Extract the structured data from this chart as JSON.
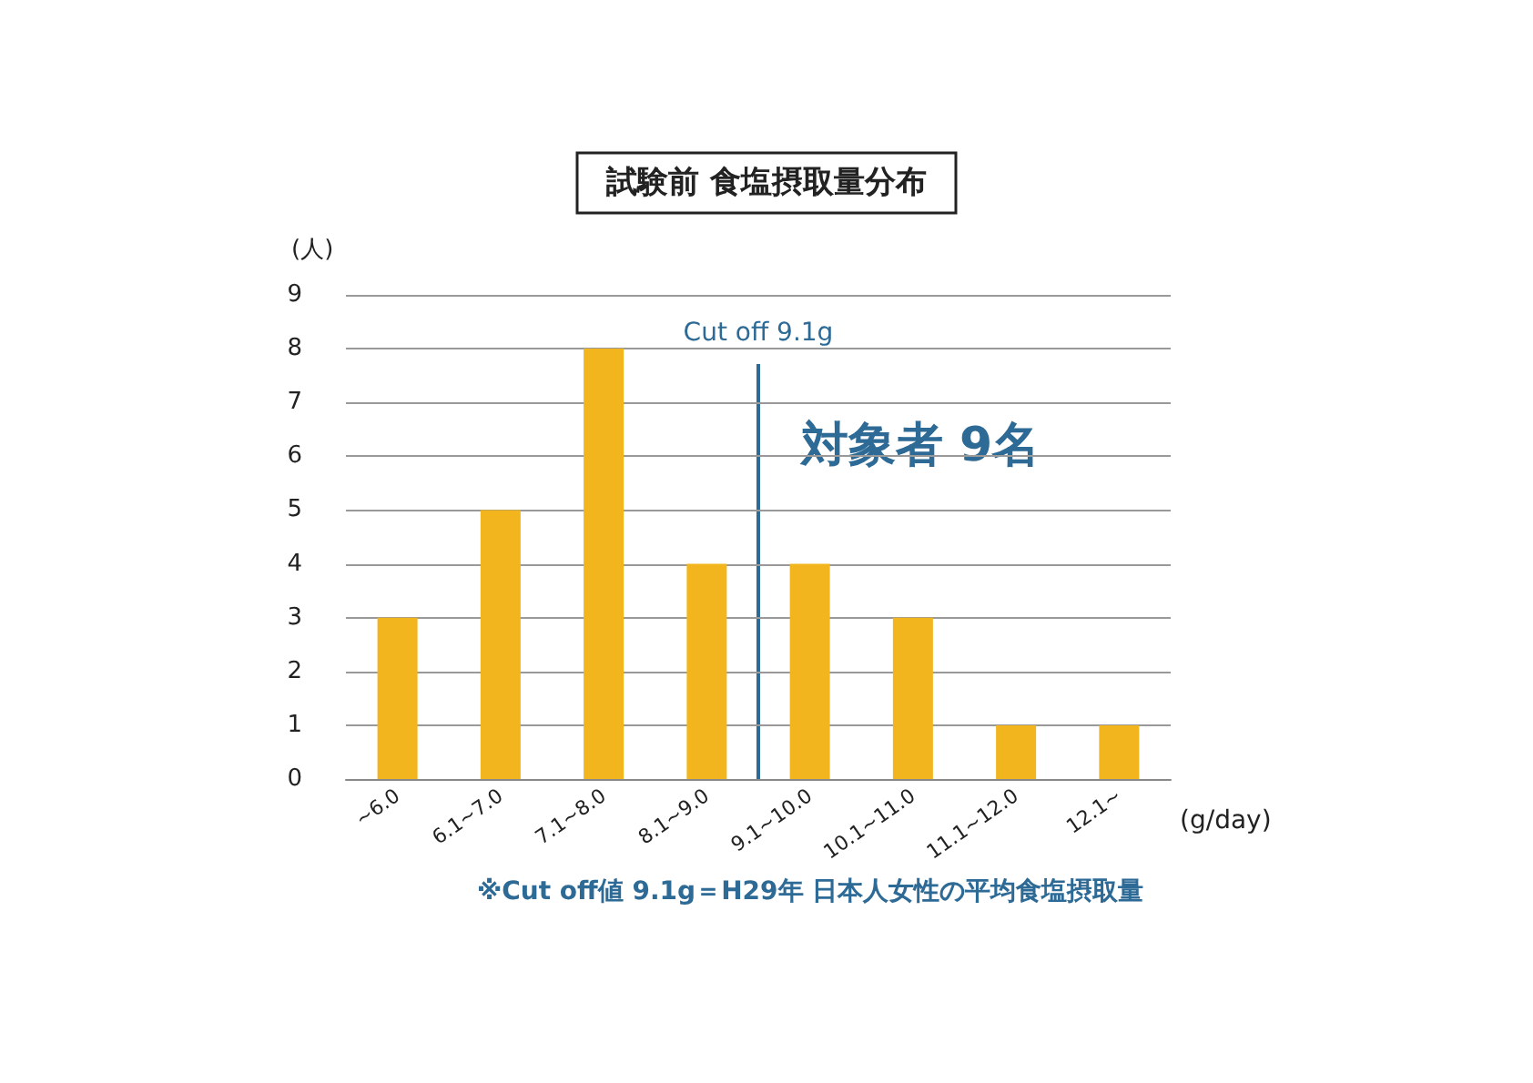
{
  "chart_data": {
    "type": "bar",
    "title": "試験前 食塩摂取量分布",
    "ylabel": "(人)",
    "xlabel": "(g/day)",
    "categories": [
      "~6.0",
      "6.1~7.0",
      "7.1~8.0",
      "8.1~9.0",
      "9.1~10.0",
      "10.1~11.0",
      "11.1~12.0",
      "12.1~"
    ],
    "values": [
      3,
      5,
      8,
      4,
      4,
      3,
      1,
      1
    ],
    "color": "#f2b51d",
    "ylim": [
      0,
      9
    ],
    "yticks": [
      0,
      1,
      2,
      3,
      4,
      5,
      6,
      7,
      8,
      9
    ],
    "grid": "y",
    "ref_lines": [
      {
        "axis": "x",
        "value": "9.1~10.0",
        "label": "Cut off 9.1g",
        "color": "#2d6a96"
      }
    ],
    "annotations": [
      "対象者 9名",
      "※Cut off値 9.1g＝H29年 日本人女性の平均食塩摂取量"
    ]
  }
}
